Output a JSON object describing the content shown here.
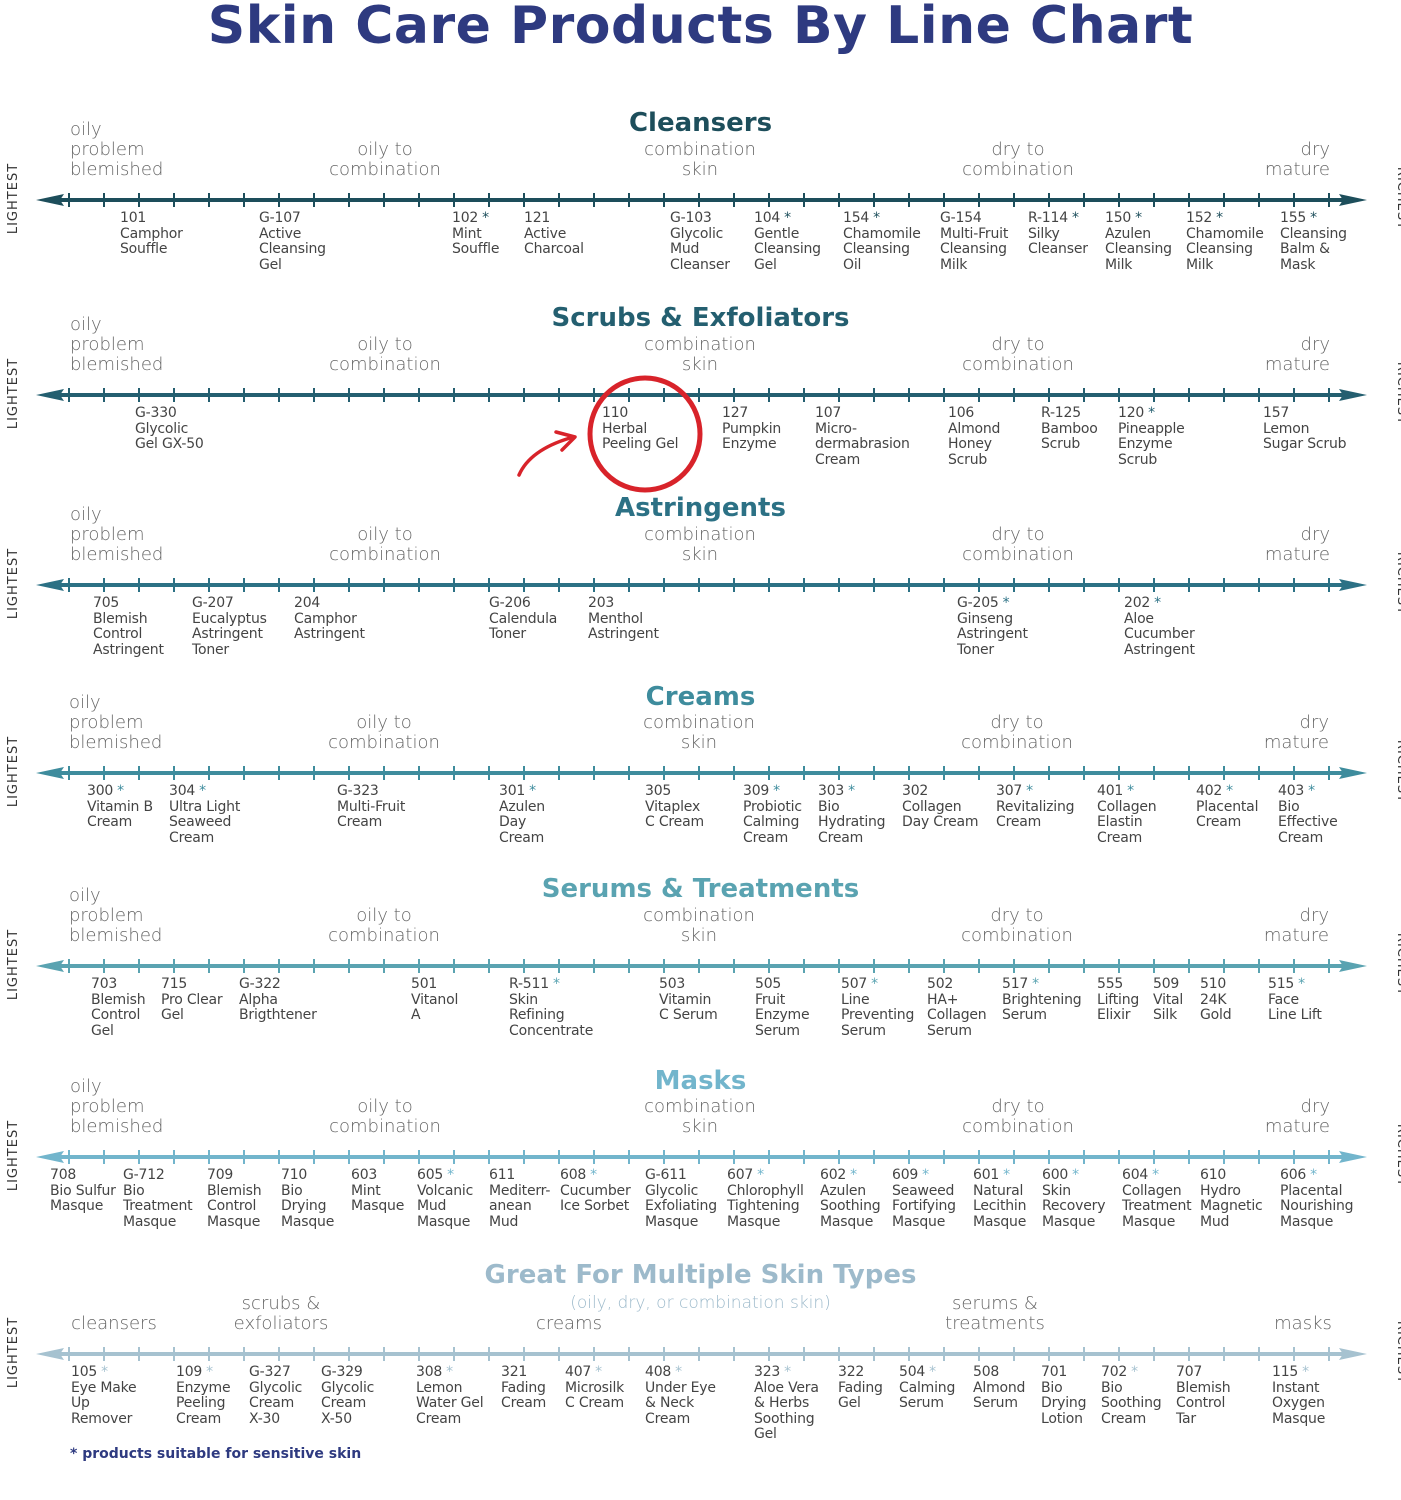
{
  "title": "Skin Care Products By Line Chart",
  "axis_ends": {
    "left": "LIGHTEST",
    "right": "RICHEST"
  },
  "skin_types": {
    "oily": [
      "oily",
      "problem",
      "blemished"
    ],
    "oily_combo": [
      "oily to",
      "combination"
    ],
    "combo": [
      "combination",
      "skin"
    ],
    "dry_combo": [
      "dry to",
      "combination"
    ],
    "dry": [
      "dry",
      "mature"
    ]
  },
  "sections": [
    {
      "title": "Cleansers",
      "color": "#1d4e5b",
      "products": [
        {
          "code": "101",
          "sensitive": false,
          "lines": [
            "Camphor",
            "Souffle"
          ]
        },
        {
          "code": "G-107",
          "sensitive": false,
          "lines": [
            "Active",
            "Cleansing",
            "Gel"
          ]
        },
        {
          "code": "102",
          "sensitive": true,
          "lines": [
            "Mint",
            "Souffle"
          ]
        },
        {
          "code": "121",
          "sensitive": false,
          "lines": [
            "Active",
            "Charcoal"
          ]
        },
        {
          "code": "G-103",
          "sensitive": false,
          "lines": [
            "Glycolic",
            "Mud",
            "Cleanser"
          ]
        },
        {
          "code": "104",
          "sensitive": true,
          "lines": [
            "Gentle",
            "Cleansing",
            "Gel"
          ]
        },
        {
          "code": "154",
          "sensitive": true,
          "lines": [
            "Chamomile",
            "Cleansing",
            "Oil"
          ]
        },
        {
          "code": "G-154",
          "sensitive": false,
          "lines": [
            "Multi-Fruit",
            "Cleansing",
            "Milk"
          ]
        },
        {
          "code": "R-114",
          "sensitive": true,
          "lines": [
            "Silky",
            "Cleanser"
          ]
        },
        {
          "code": "150",
          "sensitive": true,
          "lines": [
            "Azulen",
            "Cleansing",
            "Milk"
          ]
        },
        {
          "code": "152",
          "sensitive": true,
          "lines": [
            "Chamomile",
            "Cleansing",
            "Milk"
          ]
        },
        {
          "code": "155",
          "sensitive": true,
          "lines": [
            "Cleansing",
            "Balm &",
            "Mask"
          ]
        }
      ]
    },
    {
      "title": "Scrubs & Exfoliators",
      "color": "#245f70",
      "products": [
        {
          "code": "G-330",
          "sensitive": false,
          "lines": [
            "Glycolic",
            "Gel GX-50"
          ]
        },
        {
          "code": "110",
          "sensitive": false,
          "lines": [
            "Herbal",
            "Peeling Gel"
          ]
        },
        {
          "code": "127",
          "sensitive": false,
          "lines": [
            "Pumpkin",
            "Enzyme"
          ]
        },
        {
          "code": "107",
          "sensitive": false,
          "lines": [
            "Micro-",
            "dermabrasion",
            "Cream"
          ]
        },
        {
          "code": "106",
          "sensitive": false,
          "lines": [
            "Almond",
            "Honey",
            "Scrub"
          ]
        },
        {
          "code": "R-125",
          "sensitive": false,
          "lines": [
            "Bamboo",
            "Scrub"
          ]
        },
        {
          "code": "120",
          "sensitive": true,
          "lines": [
            "Pineapple",
            "Enzyme",
            "Scrub"
          ]
        },
        {
          "code": "157",
          "sensitive": false,
          "lines": [
            "Lemon",
            "Sugar Scrub"
          ]
        }
      ]
    },
    {
      "title": "Astringents",
      "color": "#2c7185",
      "products": [
        {
          "code": "705",
          "sensitive": false,
          "lines": [
            "Blemish",
            "Control",
            "Astringent"
          ]
        },
        {
          "code": "G-207",
          "sensitive": false,
          "lines": [
            "Eucalyptus",
            "Astringent",
            "Toner"
          ]
        },
        {
          "code": "204",
          "sensitive": false,
          "lines": [
            "Camphor",
            "Astringent"
          ]
        },
        {
          "code": "G-206",
          "sensitive": false,
          "lines": [
            "Calendula",
            "Toner"
          ]
        },
        {
          "code": "203",
          "sensitive": false,
          "lines": [
            "Menthol",
            "Astringent"
          ]
        },
        {
          "code": "G-205",
          "sensitive": true,
          "lines": [
            "Ginseng",
            "Astringent",
            "Toner"
          ]
        },
        {
          "code": "202",
          "sensitive": true,
          "lines": [
            "Aloe",
            "Cucumber",
            "Astringent"
          ]
        }
      ]
    },
    {
      "title": "Creams",
      "color": "#3e8c9d",
      "products": [
        {
          "code": "300",
          "sensitive": true,
          "lines": [
            "Vitamin B",
            "Cream"
          ]
        },
        {
          "code": "304",
          "sensitive": true,
          "lines": [
            "Ultra Light",
            "Seaweed",
            "Cream"
          ]
        },
        {
          "code": "G-323",
          "sensitive": false,
          "lines": [
            "Multi-Fruit",
            "Cream"
          ]
        },
        {
          "code": "301",
          "sensitive": true,
          "lines": [
            "Azulen",
            "Day",
            "Cream"
          ]
        },
        {
          "code": "305",
          "sensitive": false,
          "lines": [
            "Vitaplex",
            "C Cream"
          ]
        },
        {
          "code": "309",
          "sensitive": true,
          "lines": [
            "Probiotic",
            "Calming",
            "Cream"
          ]
        },
        {
          "code": "303",
          "sensitive": true,
          "lines": [
            "Bio",
            "Hydrating",
            "Cream"
          ]
        },
        {
          "code": "302",
          "sensitive": false,
          "lines": [
            "Collagen",
            "Day Cream"
          ]
        },
        {
          "code": "307",
          "sensitive": true,
          "lines": [
            "Revitalizing",
            "Cream"
          ]
        },
        {
          "code": "401",
          "sensitive": true,
          "lines": [
            "Collagen",
            "Elastin",
            "Cream"
          ]
        },
        {
          "code": "402",
          "sensitive": true,
          "lines": [
            "Placental",
            "Cream"
          ]
        },
        {
          "code": "403",
          "sensitive": true,
          "lines": [
            "Bio",
            "Effective",
            "Cream"
          ]
        }
      ]
    },
    {
      "title": "Serums & Treatments",
      "color": "#5aa3b1",
      "products": [
        {
          "code": "703",
          "sensitive": false,
          "lines": [
            "Blemish",
            "Control",
            "Gel"
          ]
        },
        {
          "code": "715",
          "sensitive": false,
          "lines": [
            "Pro Clear",
            "Gel"
          ]
        },
        {
          "code": "G-322",
          "sensitive": false,
          "lines": [
            "Alpha",
            "Brigthtener"
          ]
        },
        {
          "code": "501",
          "sensitive": false,
          "lines": [
            "Vitanol",
            "A"
          ]
        },
        {
          "code": "R-511",
          "sensitive": true,
          "lines": [
            "Skin",
            "Refining",
            "Concentrate"
          ]
        },
        {
          "code": "503",
          "sensitive": false,
          "lines": [
            "Vitamin",
            "C Serum"
          ]
        },
        {
          "code": "505",
          "sensitive": false,
          "lines": [
            "Fruit",
            "Enzyme",
            "Serum"
          ]
        },
        {
          "code": "507",
          "sensitive": true,
          "lines": [
            "Line",
            "Preventing",
            "Serum"
          ]
        },
        {
          "code": "502",
          "sensitive": false,
          "lines": [
            "HA+",
            "Collagen",
            "Serum"
          ]
        },
        {
          "code": "517",
          "sensitive": true,
          "lines": [
            "Brightening",
            "Serum"
          ]
        },
        {
          "code": "555",
          "sensitive": false,
          "lines": [
            "Lifting",
            "Elixir"
          ]
        },
        {
          "code": "509",
          "sensitive": false,
          "lines": [
            "Vital",
            "Silk"
          ]
        },
        {
          "code": "510",
          "sensitive": false,
          "lines": [
            "24K",
            "Gold"
          ]
        },
        {
          "code": "515",
          "sensitive": true,
          "lines": [
            "Face",
            "Line Lift"
          ]
        }
      ]
    },
    {
      "title": "Masks",
      "color": "#72b5cc",
      "products": [
        {
          "code": "708",
          "sensitive": false,
          "lines": [
            "Bio Sulfur",
            "Masque"
          ]
        },
        {
          "code": "G-712",
          "sensitive": false,
          "lines": [
            "Bio",
            "Treatment",
            "Masque"
          ]
        },
        {
          "code": "709",
          "sensitive": false,
          "lines": [
            "Blemish",
            "Control",
            "Masque"
          ]
        },
        {
          "code": "710",
          "sensitive": false,
          "lines": [
            "Bio",
            "Drying",
            "Masque"
          ]
        },
        {
          "code": "603",
          "sensitive": false,
          "lines": [
            "Mint",
            "Masque"
          ]
        },
        {
          "code": "605",
          "sensitive": true,
          "lines": [
            "Volcanic",
            "Mud",
            "Masque"
          ]
        },
        {
          "code": "611",
          "sensitive": false,
          "lines": [
            "Mediterr-",
            "anean",
            "Mud"
          ]
        },
        {
          "code": "608",
          "sensitive": true,
          "lines": [
            "Cucumber",
            "Ice Sorbet"
          ]
        },
        {
          "code": "G-611",
          "sensitive": false,
          "lines": [
            "Glycolic",
            "Exfoliating",
            "Masque"
          ]
        },
        {
          "code": "607",
          "sensitive": true,
          "lines": [
            "Chlorophyll",
            "Tightening",
            "Masque"
          ]
        },
        {
          "code": "602",
          "sensitive": true,
          "lines": [
            "Azulen",
            "Soothing",
            "Masque"
          ]
        },
        {
          "code": "609",
          "sensitive": true,
          "lines": [
            "Seaweed",
            "Fortifying",
            "Masque"
          ]
        },
        {
          "code": "601",
          "sensitive": true,
          "lines": [
            "Natural",
            "Lecithin",
            "Masque"
          ]
        },
        {
          "code": "600",
          "sensitive": true,
          "lines": [
            "Skin",
            "Recovery",
            "Masque"
          ]
        },
        {
          "code": "604",
          "sensitive": true,
          "lines": [
            "Collagen",
            "Treatment",
            "Masque"
          ]
        },
        {
          "code": "610",
          "sensitive": false,
          "lines": [
            "Hydro",
            "Magnetic",
            "Mud"
          ]
        },
        {
          "code": "606",
          "sensitive": true,
          "lines": [
            "Placental",
            "Nourishing",
            "Masque"
          ]
        }
      ]
    }
  ],
  "multi": {
    "title": "Great For Multiple Skin Types",
    "subtitle": "(oily, dry, or combination skin)",
    "color": "#a6c2d0",
    "categories": {
      "cleansers": "cleansers",
      "scrubs": [
        "scrubs &",
        "exfoliators"
      ],
      "creams": "creams",
      "serums": [
        "serums &",
        "treatments"
      ],
      "masks": "masks"
    },
    "products": [
      {
        "code": "105",
        "sensitive": true,
        "lines": [
          "Eye Make",
          "Up",
          "Remover"
        ]
      },
      {
        "code": "109",
        "sensitive": true,
        "lines": [
          "Enzyme",
          "Peeling",
          "Cream"
        ]
      },
      {
        "code": "G-327",
        "sensitive": false,
        "lines": [
          "Glycolic",
          "Cream",
          "X-30"
        ]
      },
      {
        "code": "G-329",
        "sensitive": false,
        "lines": [
          "Glycolic",
          "Cream",
          "X-50"
        ]
      },
      {
        "code": "308",
        "sensitive": true,
        "lines": [
          "Lemon",
          "Water Gel",
          "Cream"
        ]
      },
      {
        "code": "321",
        "sensitive": false,
        "lines": [
          "Fading",
          "Cream"
        ]
      },
      {
        "code": "407",
        "sensitive": true,
        "lines": [
          "Microsilk",
          "C Cream"
        ]
      },
      {
        "code": "408",
        "sensitive": true,
        "lines": [
          "Under Eye",
          "& Neck",
          "Cream"
        ]
      },
      {
        "code": "323",
        "sensitive": true,
        "lines": [
          "Aloe Vera",
          "& Herbs",
          "Soothing",
          "Gel"
        ]
      },
      {
        "code": "322",
        "sensitive": false,
        "lines": [
          "Fading",
          "Gel"
        ]
      },
      {
        "code": "504",
        "sensitive": true,
        "lines": [
          "Calming",
          "Serum"
        ]
      },
      {
        "code": "508",
        "sensitive": false,
        "lines": [
          "Almond",
          "Serum"
        ]
      },
      {
        "code": "701",
        "sensitive": false,
        "lines": [
          "Bio",
          "Drying",
          "Lotion"
        ]
      },
      {
        "code": "702",
        "sensitive": true,
        "lines": [
          "Bio",
          "Soothing",
          "Cream"
        ]
      },
      {
        "code": "707",
        "sensitive": false,
        "lines": [
          "Blemish",
          "Control",
          "Tar"
        ]
      },
      {
        "code": "115",
        "sensitive": true,
        "lines": [
          "Instant",
          "Oxygen",
          "Masque"
        ]
      }
    ]
  },
  "asterisk": "*",
  "footnote": "* products suitable for sensitive skin",
  "highlight": {
    "product_code": "110",
    "color": "#d8232a"
  }
}
